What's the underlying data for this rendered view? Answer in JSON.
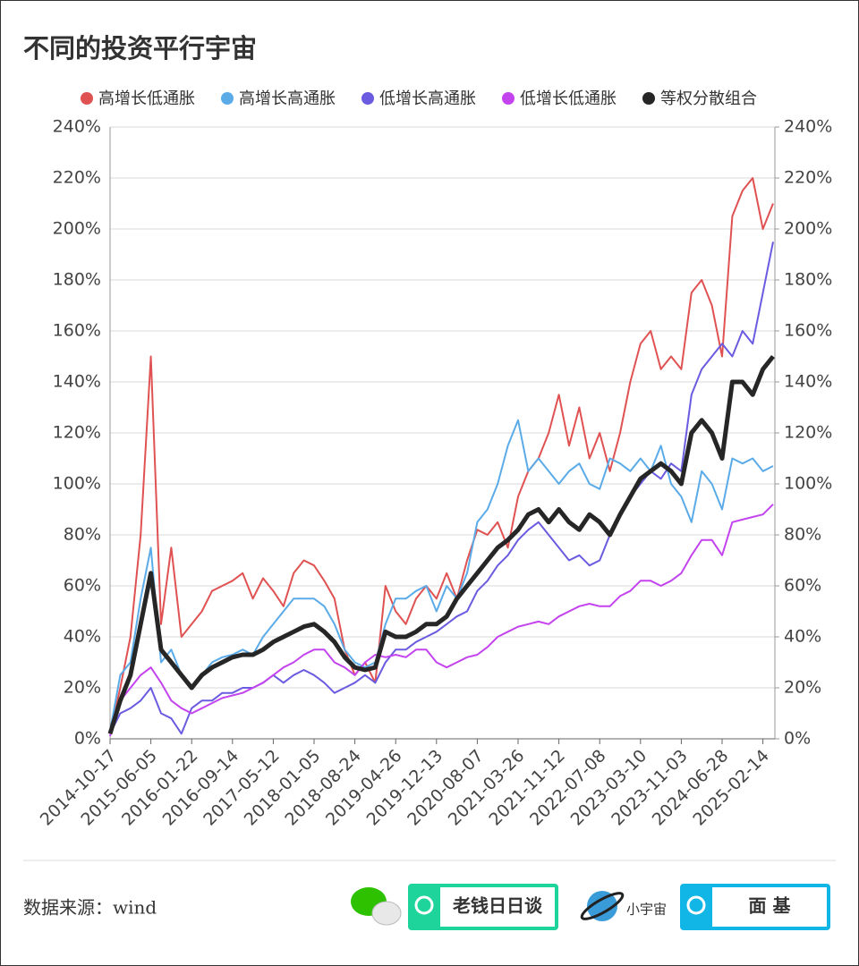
{
  "chart_data": {
    "type": "line",
    "title": "不同的投资平行宇宙",
    "categories": [
      "2014-10-17",
      null,
      null,
      null,
      "2015-06-05",
      null,
      null,
      null,
      "2016-01-22",
      null,
      null,
      null,
      "2016-09-14",
      null,
      null,
      null,
      "2017-05-12",
      null,
      null,
      null,
      "2018-01-05",
      null,
      null,
      null,
      "2018-08-24",
      null,
      null,
      null,
      "2019-04-26",
      null,
      null,
      null,
      "2019-12-13",
      null,
      null,
      null,
      "2020-08-07",
      null,
      null,
      null,
      "2021-03-26",
      null,
      null,
      null,
      "2021-11-12",
      null,
      null,
      null,
      "2022-07-08",
      null,
      null,
      null,
      "2023-03-10",
      null,
      null,
      null,
      "2023-11-03",
      null,
      null,
      null,
      "2024-06-28",
      null,
      null,
      null,
      "2025-02-14",
      null
    ],
    "series": [
      {
        "name": "高增长低通胀",
        "color": "#e05252",
        "width": 2,
        "values": [
          2,
          20,
          40,
          80,
          150,
          45,
          75,
          40,
          45,
          50,
          58,
          60,
          62,
          65,
          55,
          63,
          58,
          52,
          65,
          70,
          68,
          62,
          55,
          35,
          25,
          30,
          22,
          60,
          50,
          45,
          55,
          60,
          55,
          65,
          55,
          70,
          82,
          80,
          85,
          75,
          95,
          105,
          110,
          120,
          135,
          115,
          130,
          110,
          120,
          105,
          120,
          140,
          155,
          160,
          145,
          150,
          145,
          175,
          180,
          170,
          150,
          205,
          215,
          220,
          200,
          210
        ]
      },
      {
        "name": "高增长高通胀",
        "color": "#5aabe8",
        "width": 2,
        "values": [
          3,
          25,
          30,
          55,
          75,
          30,
          35,
          25,
          20,
          25,
          30,
          32,
          33,
          35,
          33,
          40,
          45,
          50,
          55,
          55,
          55,
          52,
          45,
          35,
          30,
          28,
          30,
          45,
          55,
          55,
          58,
          60,
          50,
          60,
          55,
          65,
          85,
          90,
          100,
          115,
          125,
          105,
          110,
          105,
          100,
          105,
          108,
          100,
          98,
          110,
          108,
          105,
          110,
          105,
          115,
          100,
          95,
          85,
          105,
          100,
          90,
          110,
          108,
          110,
          105,
          107
        ]
      },
      {
        "name": "低增长高通胀",
        "color": "#6a5be0",
        "width": 2,
        "values": [
          2,
          10,
          12,
          15,
          20,
          10,
          8,
          2,
          12,
          15,
          15,
          18,
          18,
          20,
          20,
          22,
          25,
          22,
          25,
          27,
          25,
          22,
          18,
          20,
          22,
          25,
          22,
          30,
          35,
          35,
          38,
          40,
          42,
          45,
          48,
          50,
          58,
          62,
          68,
          72,
          78,
          82,
          85,
          80,
          75,
          70,
          72,
          68,
          70,
          80,
          88,
          95,
          100,
          105,
          102,
          108,
          105,
          135,
          145,
          150,
          155,
          150,
          160,
          155,
          175,
          195
        ]
      },
      {
        "name": "低增长低通胀",
        "color": "#c344ee",
        "width": 2,
        "values": [
          1,
          15,
          20,
          25,
          28,
          22,
          15,
          12,
          10,
          12,
          14,
          16,
          17,
          18,
          20,
          22,
          25,
          28,
          30,
          33,
          35,
          35,
          30,
          28,
          25,
          30,
          33,
          32,
          33,
          32,
          35,
          35,
          30,
          28,
          30,
          32,
          33,
          36,
          40,
          42,
          44,
          45,
          46,
          45,
          48,
          50,
          52,
          53,
          52,
          52,
          56,
          58,
          62,
          62,
          60,
          62,
          65,
          72,
          78,
          78,
          72,
          85,
          86,
          87,
          88,
          92
        ]
      },
      {
        "name": "等权分散组合",
        "color": "#262626",
        "width": 5,
        "values": [
          2,
          15,
          25,
          45,
          65,
          35,
          30,
          25,
          20,
          25,
          28,
          30,
          32,
          33,
          33,
          35,
          38,
          40,
          42,
          44,
          45,
          42,
          38,
          32,
          28,
          27,
          28,
          42,
          40,
          40,
          42,
          45,
          45,
          48,
          55,
          60,
          65,
          70,
          75,
          78,
          82,
          88,
          90,
          85,
          90,
          85,
          82,
          88,
          85,
          80,
          88,
          95,
          102,
          105,
          108,
          105,
          100,
          120,
          125,
          120,
          110,
          140,
          140,
          135,
          145,
          150
        ]
      }
    ],
    "ylim": [
      0,
      240
    ],
    "yticks": [
      {
        "value": 0,
        "label": "0%"
      },
      {
        "value": 20,
        "label": "20%"
      },
      {
        "value": 40,
        "label": "40%"
      },
      {
        "value": 60,
        "label": "60%"
      },
      {
        "value": 80,
        "label": "80%"
      },
      {
        "value": 100,
        "label": "100%"
      },
      {
        "value": 120,
        "label": "120%"
      },
      {
        "value": 140,
        "label": "140%"
      },
      {
        "value": 160,
        "label": "160%"
      },
      {
        "value": 180,
        "label": "180%"
      },
      {
        "value": 200,
        "label": "200%"
      },
      {
        "value": 220,
        "label": "220%"
      },
      {
        "value": 240,
        "label": "240%"
      }
    ],
    "y2lim": [
      0,
      240
    ],
    "y2ticks": [
      {
        "value": 0,
        "label": "0%"
      },
      {
        "value": 20,
        "label": "20%"
      },
      {
        "value": 40,
        "label": "40%"
      },
      {
        "value": 60,
        "label": "60%"
      },
      {
        "value": 80,
        "label": "80%"
      },
      {
        "value": 100,
        "label": "100%"
      },
      {
        "value": 120,
        "label": "120%"
      },
      {
        "value": 140,
        "label": "140%"
      },
      {
        "value": 160,
        "label": "160%"
      },
      {
        "value": 180,
        "label": "180%"
      },
      {
        "value": 200,
        "label": "200%"
      },
      {
        "value": 220,
        "label": "220%"
      },
      {
        "value": 240,
        "label": "240%"
      }
    ],
    "grid": true,
    "legend": "top"
  },
  "footer": {
    "source": "数据来源：wind",
    "brand1": "老钱日日谈",
    "brand2": "小宇宙",
    "brand3": "面 基"
  }
}
